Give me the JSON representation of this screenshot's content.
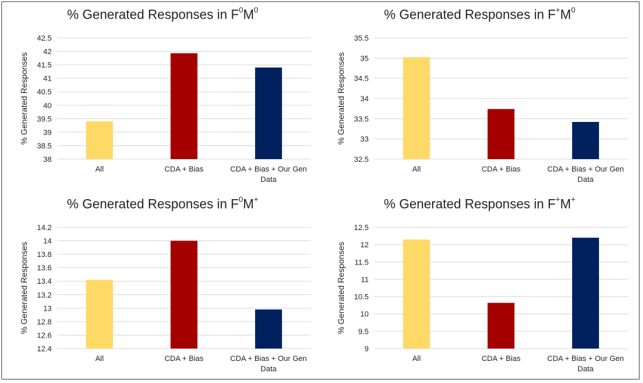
{
  "charts": [
    {
      "title_prefix": "% Generated Responses in F",
      "title_sup1": "0",
      "title_mid": "M",
      "title_sup2": "0",
      "chart_data": {
        "type": "bar",
        "categories": [
          "All",
          "CDA + Bias",
          "CDA + Bias + Our Gen Data"
        ],
        "values": [
          39.4,
          41.93,
          41.4
        ],
        "ylabel": "% Generated Responses",
        "ylim": [
          38,
          42.5
        ],
        "yticks": [
          "38",
          "38.5",
          "39",
          "39.5",
          "40",
          "40.5",
          "41",
          "41.5",
          "42",
          "42.5"
        ],
        "grid": true
      }
    },
    {
      "title_prefix": "% Generated Responses in F",
      "title_sup1": "+",
      "title_mid": "M",
      "title_sup2": "0",
      "chart_data": {
        "type": "bar",
        "categories": [
          "All",
          "CDA + Bias",
          "CDA + Bias + Our Gen Data"
        ],
        "values": [
          35.02,
          33.74,
          33.42
        ],
        "ylabel": "% Generated Responses",
        "ylim": [
          32.5,
          35.5
        ],
        "yticks": [
          "32.5",
          "33",
          "33.5",
          "34",
          "34.5",
          "35",
          "35.5"
        ],
        "grid": true
      }
    },
    {
      "title_prefix": "% Generated Responses in F",
      "title_sup1": "0",
      "title_mid": "M",
      "title_sup2": "+",
      "chart_data": {
        "type": "bar",
        "categories": [
          "All",
          "CDA + Bias",
          "CDA + Bias + Our Gen Data"
        ],
        "values": [
          13.42,
          14.0,
          12.98
        ],
        "ylabel": "% Generated Responses",
        "ylim": [
          12.4,
          14.2
        ],
        "yticks": [
          "12.4",
          "12.6",
          "12.8",
          "13",
          "13.2",
          "13.4",
          "13.6",
          "13.8",
          "14",
          "14.2"
        ],
        "grid": true
      }
    },
    {
      "title_prefix": "% Generated Responses in F",
      "title_sup1": "+",
      "title_mid": "M",
      "title_sup2": "+",
      "chart_data": {
        "type": "bar",
        "categories": [
          "All",
          "CDA + Bias",
          "CDA + Bias + Our Gen Data"
        ],
        "values": [
          12.15,
          10.32,
          12.2
        ],
        "ylabel": "% Generated Responses",
        "ylim": [
          9,
          12.5
        ],
        "yticks": [
          "9",
          "9.5",
          "10",
          "10.5",
          "11",
          "11.5",
          "12",
          "12.5"
        ],
        "grid": true
      }
    }
  ],
  "colors": {
    "bar_all": "#FFD966",
    "bar_cda_bias": "#A50000",
    "bar_cda_bias_gen": "#00215E",
    "grid": "#D9D9D9",
    "axis_text": "#222222"
  }
}
